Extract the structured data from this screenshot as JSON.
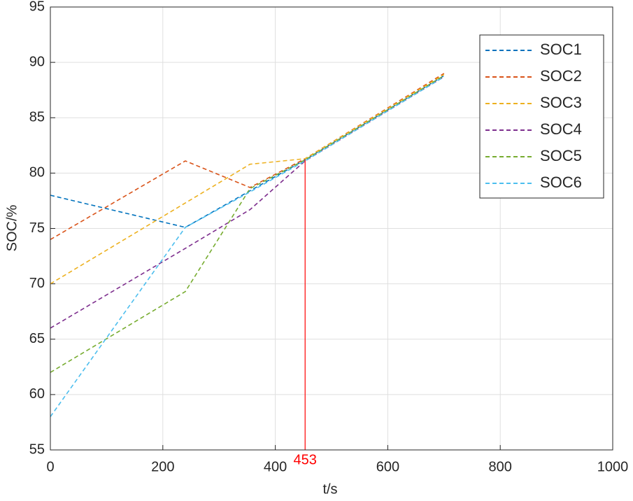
{
  "chart_data": {
    "type": "line",
    "xlabel": "t/s",
    "ylabel": "SOC/%",
    "x": [
      0,
      240,
      355,
      453,
      700
    ],
    "series": [
      {
        "name": "SOC1",
        "color": "#0072bd",
        "values": [
          78,
          75.1,
          78.4,
          81.2,
          88.8
        ]
      },
      {
        "name": "SOC2",
        "color": "#d95319",
        "values": [
          74,
          81.1,
          78.7,
          81.3,
          89
        ]
      },
      {
        "name": "SOC3",
        "color": "#edb120",
        "values": [
          70,
          77.3,
          80.8,
          81.3,
          88.9
        ]
      },
      {
        "name": "SOC4",
        "color": "#7e2f8e",
        "values": [
          66,
          73.2,
          76.7,
          81.1,
          88.7
        ]
      },
      {
        "name": "SOC5",
        "color": "#77ac30",
        "values": [
          62,
          69.3,
          78.6,
          81.2,
          88.8
        ]
      },
      {
        "name": "SOC6",
        "color": "#4dbeee",
        "values": [
          58,
          75.1,
          78.3,
          81.1,
          88.7
        ]
      }
    ],
    "marker": {
      "x": 453,
      "y": 81.2,
      "color": "#ff0000"
    },
    "xlim": [
      0,
      1000
    ],
    "xticks": [
      0,
      200,
      400,
      600,
      800,
      1000
    ],
    "ylim": [
      55,
      95
    ],
    "yticks": [
      55,
      60,
      65,
      70,
      75,
      80,
      85,
      90,
      95
    ],
    "grid": true,
    "legend": "upper right"
  }
}
